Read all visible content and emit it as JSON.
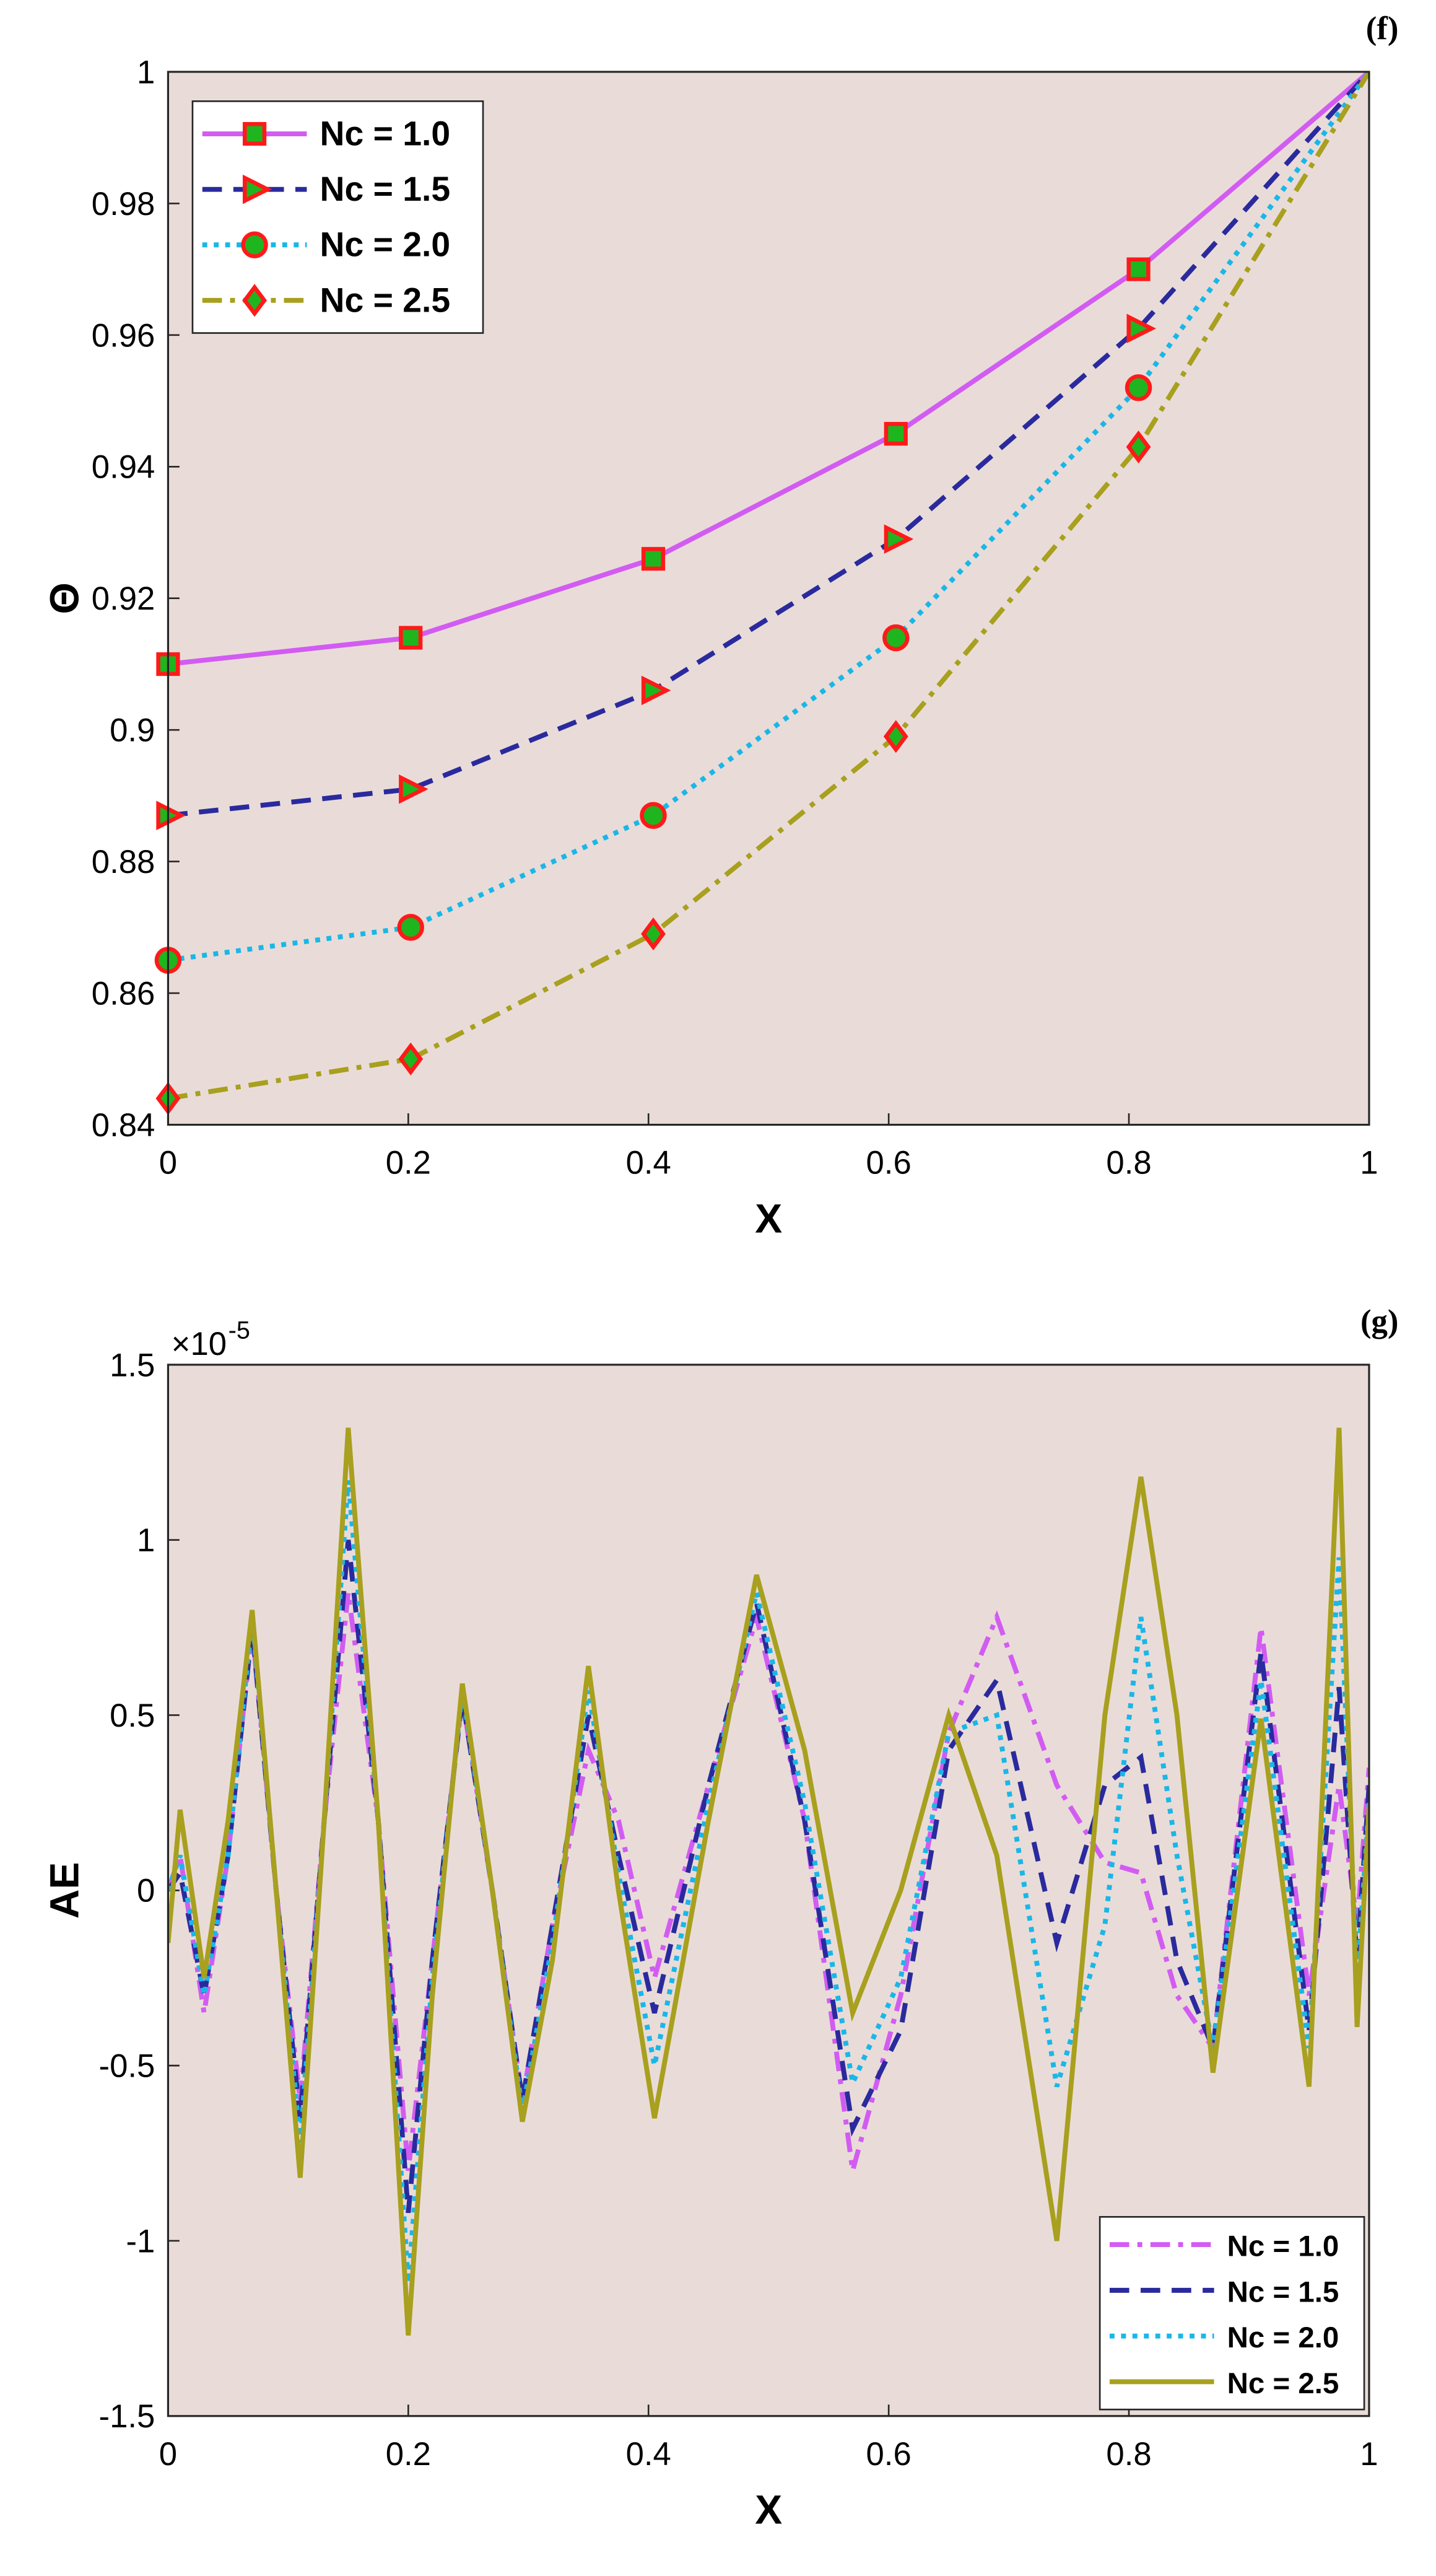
{
  "chart_data": [
    {
      "type": "line",
      "panel_label": "(f)",
      "x_label": "X",
      "y_label": "Θ",
      "legend": "upper left",
      "background": "#e9dcd8",
      "grid": false,
      "x": [
        0,
        0.202,
        0.404,
        0.606,
        0.808,
        1
      ],
      "xlim": [
        0,
        1
      ],
      "xticks": [
        0,
        0.2,
        0.4,
        0.6,
        0.8,
        1
      ],
      "ylim": [
        0.84,
        1
      ],
      "yticks": [
        0.84,
        0.86,
        0.88,
        0.9,
        0.92,
        0.94,
        0.96,
        0.98,
        1
      ],
      "marker_edge_color": "#ff1a1a",
      "marker_face_color": "#1fb51f",
      "series": [
        {
          "name": "Nc = 1.0",
          "color": "#d25cf2",
          "linestyle": "solid",
          "marker": "square",
          "values": [
            0.91,
            0.914,
            0.926,
            0.945,
            0.97,
            1.0
          ]
        },
        {
          "name": "Nc = 1.5",
          "color": "#2a2a9e",
          "linestyle": "dashed",
          "marker": "triangle-right",
          "values": [
            0.887,
            0.891,
            0.906,
            0.929,
            0.961,
            1.0
          ]
        },
        {
          "name": "Nc = 2.0",
          "color": "#19b7e8",
          "linestyle": "dotted",
          "marker": "circle",
          "values": [
            0.865,
            0.87,
            0.887,
            0.914,
            0.952,
            1.0
          ]
        },
        {
          "name": "Nc = 2.5",
          "color": "#a8a01e",
          "linestyle": "dashdot",
          "marker": "diamond",
          "values": [
            0.844,
            0.85,
            0.869,
            0.899,
            0.943,
            1.0
          ]
        }
      ]
    },
    {
      "type": "line",
      "panel_label": "(g)",
      "x_label": "X",
      "y_label": "AE",
      "y_multiplier": "×10",
      "y_exponent": "-5",
      "legend": "lower right",
      "background": "#e9dcd8",
      "grid": false,
      "x": [
        0,
        0.01,
        0.03,
        0.05,
        0.07,
        0.09,
        0.11,
        0.13,
        0.15,
        0.175,
        0.2,
        0.22,
        0.245,
        0.27,
        0.295,
        0.32,
        0.35,
        0.375,
        0.405,
        0.45,
        0.49,
        0.53,
        0.57,
        0.61,
        0.65,
        0.69,
        0.74,
        0.78,
        0.81,
        0.84,
        0.87,
        0.91,
        0.95,
        0.975,
        0.99,
        1
      ],
      "xlim": [
        0,
        1
      ],
      "xticks": [
        0,
        0.2,
        0.4,
        0.6,
        0.8,
        1
      ],
      "ylim": [
        -1.5,
        1.5
      ],
      "yticks": [
        -1.5,
        -1,
        -0.5,
        0,
        0.5,
        1,
        1.5
      ],
      "series": [
        {
          "name": "Nc = 1.0",
          "color": "#d25cf2",
          "linestyle": "dashdot",
          "values": [
            0,
            0.1,
            -0.35,
            0.1,
            0.75,
            0,
            -0.6,
            0.2,
            0.85,
            0.2,
            -0.8,
            -0.2,
            0.55,
            0,
            -0.6,
            -0.1,
            0.4,
            0.2,
            -0.25,
            0.3,
            0.78,
            0.2,
            -0.8,
            -0.3,
            0.45,
            0.78,
            0.3,
            0.08,
            0.05,
            -0.3,
            -0.45,
            0.75,
            -0.3,
            0.3,
            -0.1,
            0.35
          ]
        },
        {
          "name": "Nc = 1.5",
          "color": "#2a2a9e",
          "linestyle": "dashed",
          "values": [
            0,
            0.05,
            -0.3,
            0.1,
            0.75,
            0,
            -0.65,
            0.2,
            1.0,
            0.2,
            -0.92,
            -0.2,
            0.55,
            0,
            -0.6,
            -0.1,
            0.5,
            0.1,
            -0.35,
            0.3,
            0.82,
            0.2,
            -0.68,
            -0.4,
            0.4,
            0.6,
            -0.15,
            0.3,
            0.38,
            -0.2,
            -0.45,
            0.68,
            -0.4,
            0.58,
            -0.2,
            0.3
          ]
        },
        {
          "name": "Nc = 2.0",
          "color": "#19b7e8",
          "linestyle": "dotted",
          "values": [
            0,
            0.1,
            -0.3,
            0.1,
            0.78,
            0,
            -0.72,
            0.2,
            1.17,
            0.2,
            -1.12,
            -0.25,
            0.57,
            0,
            -0.63,
            -0.15,
            0.57,
            0.05,
            -0.5,
            0.25,
            0.85,
            0.25,
            -0.55,
            -0.25,
            0.45,
            0.5,
            -0.56,
            -0.1,
            0.78,
            0.1,
            -0.45,
            0.6,
            -0.45,
            0.95,
            -0.25,
            0.25
          ]
        },
        {
          "name": "Nc = 2.5",
          "color": "#a8a01e",
          "linestyle": "solid",
          "values": [
            -0.15,
            0.23,
            -0.25,
            0.2,
            0.8,
            0,
            -0.82,
            0.2,
            1.32,
            0.2,
            -1.27,
            -0.3,
            0.59,
            0,
            -0.66,
            -0.2,
            0.64,
            0,
            -0.65,
            0.2,
            0.9,
            0.4,
            -0.35,
            0,
            0.5,
            0.1,
            -1.0,
            0.5,
            1.18,
            0.5,
            -0.52,
            0.49,
            -0.56,
            1.32,
            -0.39,
            0.24
          ]
        }
      ]
    }
  ]
}
